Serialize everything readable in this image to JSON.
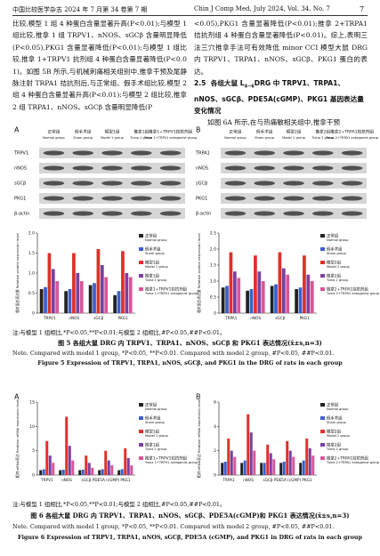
{
  "header": {
    "left": "中国比较医学杂志 2024 年 7 月第 34 卷第 7 期",
    "center": "Chin J Comp Med, July 2024, Vol. 34, No. 7",
    "page": "7"
  },
  "body": {
    "left": "比较,模型 1 组 4 种蛋白含量显著升高(P<0.01);与模型 1 组比较,推拿 1 组 TRPV1、nNOS、sGCβ 含量明显降低(P<0.05),PKG1 含量显著降低(P<0.01);与模型 1 组比较,推拿 1+TRPV1 抗剂组 4 种蛋白含量显著降低(P<0.01)。如图 5B 所示,与机械刺痛相关组别中,推拿干预及尾静脉注射 TRPA1 拮抗剂后,与正常组、假手术组比较,模型 2 组 4 种蛋白含量显著升高(P<0.01);与模型 2 组比较,推拿 2 组 TRPA1、nNOS、sGCβ 含量明显降低(P",
    "right_1": "<0.05),PKG1 含量显著降低(P<0.01);推拿 2+TRPA1 拮抗剂组 4 种蛋白含量显著降低(P<0.01)。综上,表明三法三穴推拿手法可有效降低 minor CCI 模型大鼠 DRG 内 TRPV1、TRPA1、nNOS、sGCβ、PKG1 蛋白的表达。",
    "heading": {
      "number": "2.5",
      "before": "各组大鼠 L",
      "sub": "4~6",
      "after": "DRG 中 TRPV1、TRPA1、nNOS、sGCβ、PDE5A(cGMP)、PKG1 基因表达量变化情况"
    },
    "right_2": "如图 6A 所示,在与热痛敏相关组中,推拿干预"
  },
  "figures": [
    {
      "panels": [
        {
          "label": "A",
          "blot": {
            "rows": [
              "TRPV1",
              "nNOS",
              "sGCβ",
              "PKG1",
              "β-actin"
            ]
          },
          "chart": {
            "type": "bar",
            "ylabel": "相对蛋白表达量 Relative protein expression level",
            "categories": [
              "TRPV1",
              "nNOS",
              "sGCβ",
              "PKG1"
            ],
            "ylim": [
              0,
              2
            ],
            "yticks": [
              0,
              0.5,
              {
                "value": 1,
                "label": "1.0"
              },
              1.5,
              {
                "value": 2,
                "label": "2.0"
              }
            ],
            "series": [
              {
                "name": "正常组",
                "name_en": "Normal group",
                "color": "#222222",
                "values": [
                  0.6,
                  0.55,
                  0.7,
                  0.45
                ]
              },
              {
                "name": "假手术组",
                "name_en": "Sham group",
                "color": "#3a5fcd",
                "values": [
                  0.65,
                  0.6,
                  0.75,
                  0.55
                ]
              },
              {
                "name": "模型1组",
                "name_en": "Model 1 group",
                "color": "#e0302a",
                "values": [
                  1.5,
                  1.5,
                  1.6,
                  1.55
                ]
              },
              {
                "name": "推拿1组",
                "name_en": "Tuina 1 group",
                "color": "#7b3fa0",
                "values": [
                  1.1,
                  1.0,
                  1.2,
                  1.0
                ]
              },
              {
                "name": "推拿1+TRPV1拮抗剂组",
                "name_en": "Tuina 1+TRPV1 antagonist group",
                "color": "#d9559a",
                "values": [
                  0.8,
                  0.8,
                  0.9,
                  0.9
                ]
              }
            ]
          }
        },
        {
          "label": "B",
          "blot": {
            "rows": [
              "TRPA1",
              "nNOS",
              "sGCβ",
              "PKG1",
              "β-actin"
            ]
          },
          "chart": {
            "type": "bar",
            "ylabel": "相对蛋白表达量 Relative protein expression level",
            "categories": [
              "TRPA1",
              "nNOS",
              "sGCβ",
              "PKG1"
            ],
            "ylim": [
              0,
              2.5
            ],
            "yticks": [
              0,
              0.5,
              {
                "value": 1,
                "label": "1.0"
              },
              1.5,
              {
                "value": 2,
                "label": "2.0"
              },
              2.5
            ],
            "series": [
              {
                "name": "正常组",
                "name_en": "Normal group",
                "color": "#222222",
                "values": [
                  0.8,
                  0.7,
                  0.85,
                  0.75
                ]
              },
              {
                "name": "假手术组",
                "name_en": "Sham group",
                "color": "#3a5fcd",
                "values": [
                  0.85,
                  0.75,
                  0.9,
                  0.8
                ]
              },
              {
                "name": "模型2组",
                "name_en": "Model 2 group",
                "color": "#e0302a",
                "values": [
                  1.9,
                  1.8,
                  1.9,
                  1.8
                ]
              },
              {
                "name": "推拿2组",
                "name_en": "Tuina 2 group",
                "color": "#7b3fa0",
                "values": [
                  1.3,
                  1.3,
                  1.4,
                  1.2
                ]
              },
              {
                "name": "推拿2+TRPA1拮抗剂组",
                "name_en": "Tuina 2+TRPA1 antagonist group",
                "color": "#d9559a",
                "values": [
                  1.1,
                  1.0,
                  1.2,
                  1.0
                ]
              }
            ]
          }
        }
      ],
      "note": "注:与模型 1 组相比,*P<0.05,**P<0.01;与模型 2 组相比,#P<0.05,##P<0.01。",
      "caption": "图 5 各组大鼠 DRG 内 TRPV1、TRPA1、nNOS、sGCβ 和 PKG1 表达情况(x̄±s,n=3)",
      "note_en": "Note. Compared with model 1 group, *P<0.05, **P<0.01. Compared with model 2 group, #P<0.05, ##P<0.01.",
      "caption_en": "Figure 5   Expression of TRPV1, TRPA1, nNOS, sGCβ, and PKG1 in the DRG of rats in each group"
    },
    {
      "panels": [
        {
          "label": "A",
          "chart": {
            "type": "bar",
            "ylabel": "相对mRNA表达 Relative mRNA expression level",
            "categories": [
              "TRPV1",
              "nNOS",
              "sGCβ",
              "PDE5A (cGMP)",
              "PKG1"
            ],
            "ylim": [
              0,
              15
            ],
            "yticks": [
              0,
              5,
              10,
              15
            ],
            "series": [
              {
                "name": "正常组",
                "name_en": "Normal group",
                "color": "#222222",
                "values": [
                  1,
                  1,
                  1,
                  1,
                  1
                ]
              },
              {
                "name": "假手术组",
                "name_en": "Sham group",
                "color": "#3a5fcd",
                "values": [
                  1.2,
                  1.1,
                  1.1,
                  1.2,
                  1.2
                ]
              },
              {
                "name": "模型1组",
                "name_en": "Model 1 group",
                "color": "#e0302a",
                "values": [
                  7,
                  12,
                  4,
                  5,
                  5.5
                ]
              },
              {
                "name": "推拿1组",
                "name_en": "Tuina 1 group",
                "color": "#7b3fa0",
                "values": [
                  4,
                  6,
                  2.5,
                  3,
                  3.5
                ]
              },
              {
                "name": "推拿1+TRPV1拮抗剂组",
                "name_en": "Tuina 1+TRPV1 antagonist group",
                "color": "#d9559a",
                "values": [
                  2.5,
                  3,
                  1.5,
                  2,
                  2
                ]
              }
            ]
          }
        },
        {
          "label": "B",
          "chart": {
            "type": "bar",
            "ylabel": "相对mRNA表达 Relative mRNA expression level",
            "categories": [
              "TRPA1",
              "nNOS",
              "sGCβ",
              "PDE5A (cGMP)",
              "PKG1"
            ],
            "ylim": [
              0,
              6
            ],
            "yticks": [
              0,
              2,
              4,
              6
            ],
            "series": [
              {
                "name": "正常组",
                "name_en": "Normal group",
                "color": "#222222",
                "values": [
                  1,
                  1,
                  1,
                  1,
                  1
                ]
              },
              {
                "name": "假手术组",
                "name_en": "Sham group",
                "color": "#3a5fcd",
                "values": [
                  1.1,
                  1.2,
                  1,
                  1.1,
                  1.2
                ]
              },
              {
                "name": "模型2组",
                "name_en": "Model 2 group",
                "color": "#e0302a",
                "values": [
                  3,
                  5,
                  2.5,
                  2.8,
                  3
                ]
              },
              {
                "name": "推拿2组",
                "name_en": "Tuina 2 group",
                "color": "#7b3fa0",
                "values": [
                  2,
                  3.5,
                  1.8,
                  2,
                  2.2
                ]
              },
              {
                "name": "推拿2+TRPA1拮抗剂组",
                "name_en": "Tuina 2+TRPA1 antagonist group",
                "color": "#d9559a",
                "values": [
                  1.5,
                  2,
                  1.3,
                  1.5,
                  1.6
                ]
              }
            ]
          }
        }
      ],
      "note": "注:与模型 1 组相比,*P<0.05,**P<0.01;与模型 2 组相比,#P<0.05,##P<0.01。",
      "caption": "图 6 各组大鼠 DRG 内 TRPV1、TRPA1、nNOS、sGCβ、PDE5A(cGMP)和 PKG1 表达情况(x̄±s,n=3)",
      "note_en": "Note. Compared with model 1 group, *P<0.05, **P<0.01. Compared with model 2 group, #P<0.05, ##P<0.01.",
      "caption_en": "Figure 6   Expression of TRPV1, TRPA1, nNOS, sGCβ, PDE5A (cGMP), and PKG1 in DRG of rats in each group"
    }
  ]
}
